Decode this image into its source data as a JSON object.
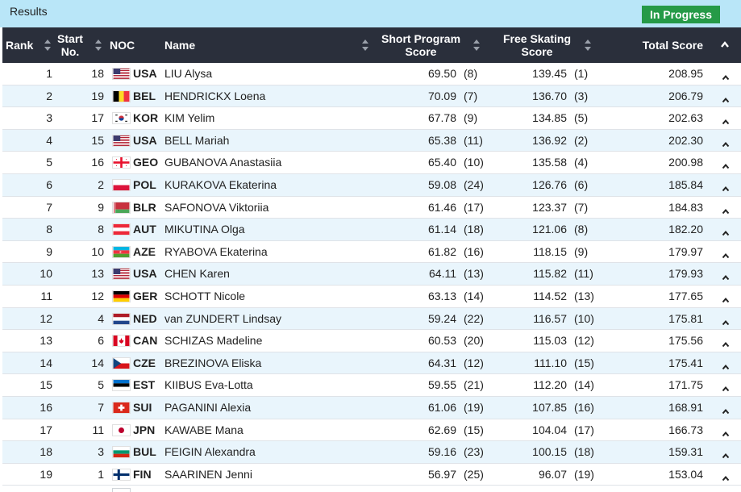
{
  "header": {
    "title": "Results",
    "status": "In Progress",
    "status_color": "#259a47"
  },
  "columns": {
    "rank": "Rank",
    "start_line1": "Start",
    "start_line2": "No.",
    "noc": "NOC",
    "name": "Name",
    "sp_line1": "Short Program",
    "sp_line2": "Score",
    "fs_line1": "Free Skating",
    "fs_line2": "Score",
    "total": "Total Score"
  },
  "rows": [
    {
      "rank": "1",
      "start": "18",
      "noc": "USA",
      "flag": "usa",
      "name": "LIU Alysa",
      "sp": "69.50",
      "sp_rank": "(8)",
      "fs": "139.45",
      "fs_rank": "(1)",
      "total": "208.95"
    },
    {
      "rank": "2",
      "start": "19",
      "noc": "BEL",
      "flag": "bel",
      "name": "HENDRICKX Loena",
      "sp": "70.09",
      "sp_rank": "(7)",
      "fs": "136.70",
      "fs_rank": "(3)",
      "total": "206.79"
    },
    {
      "rank": "3",
      "start": "17",
      "noc": "KOR",
      "flag": "kor",
      "name": "KIM Yelim",
      "sp": "67.78",
      "sp_rank": "(9)",
      "fs": "134.85",
      "fs_rank": "(5)",
      "total": "202.63"
    },
    {
      "rank": "4",
      "start": "15",
      "noc": "USA",
      "flag": "usa",
      "name": "BELL Mariah",
      "sp": "65.38",
      "sp_rank": "(11)",
      "fs": "136.92",
      "fs_rank": "(2)",
      "total": "202.30"
    },
    {
      "rank": "5",
      "start": "16",
      "noc": "GEO",
      "flag": "geo",
      "name": "GUBANOVA Anastasiia",
      "sp": "65.40",
      "sp_rank": "(10)",
      "fs": "135.58",
      "fs_rank": "(4)",
      "total": "200.98"
    },
    {
      "rank": "6",
      "start": "2",
      "noc": "POL",
      "flag": "pol",
      "name": "KURAKOVA Ekaterina",
      "sp": "59.08",
      "sp_rank": "(24)",
      "fs": "126.76",
      "fs_rank": "(6)",
      "total": "185.84"
    },
    {
      "rank": "7",
      "start": "9",
      "noc": "BLR",
      "flag": "blr",
      "name": "SAFONOVA Viktoriia",
      "sp": "61.46",
      "sp_rank": "(17)",
      "fs": "123.37",
      "fs_rank": "(7)",
      "total": "184.83"
    },
    {
      "rank": "8",
      "start": "8",
      "noc": "AUT",
      "flag": "aut",
      "name": "MIKUTINA Olga",
      "sp": "61.14",
      "sp_rank": "(18)",
      "fs": "121.06",
      "fs_rank": "(8)",
      "total": "182.20"
    },
    {
      "rank": "9",
      "start": "10",
      "noc": "AZE",
      "flag": "aze",
      "name": "RYABOVA Ekaterina",
      "sp": "61.82",
      "sp_rank": "(16)",
      "fs": "118.15",
      "fs_rank": "(9)",
      "total": "179.97"
    },
    {
      "rank": "10",
      "start": "13",
      "noc": "USA",
      "flag": "usa",
      "name": "CHEN Karen",
      "sp": "64.11",
      "sp_rank": "(13)",
      "fs": "115.82",
      "fs_rank": "(11)",
      "total": "179.93"
    },
    {
      "rank": "11",
      "start": "12",
      "noc": "GER",
      "flag": "ger",
      "name": "SCHOTT Nicole",
      "sp": "63.13",
      "sp_rank": "(14)",
      "fs": "114.52",
      "fs_rank": "(13)",
      "total": "177.65"
    },
    {
      "rank": "12",
      "start": "4",
      "noc": "NED",
      "flag": "ned",
      "name": "van ZUNDERT Lindsay",
      "sp": "59.24",
      "sp_rank": "(22)",
      "fs": "116.57",
      "fs_rank": "(10)",
      "total": "175.81"
    },
    {
      "rank": "13",
      "start": "6",
      "noc": "CAN",
      "flag": "can",
      "name": "SCHIZAS Madeline",
      "sp": "60.53",
      "sp_rank": "(20)",
      "fs": "115.03",
      "fs_rank": "(12)",
      "total": "175.56"
    },
    {
      "rank": "14",
      "start": "14",
      "noc": "CZE",
      "flag": "cze",
      "name": "BREZINOVA Eliska",
      "sp": "64.31",
      "sp_rank": "(12)",
      "fs": "111.10",
      "fs_rank": "(15)",
      "total": "175.41"
    },
    {
      "rank": "15",
      "start": "5",
      "noc": "EST",
      "flag": "est",
      "name": "KIIBUS Eva-Lotta",
      "sp": "59.55",
      "sp_rank": "(21)",
      "fs": "112.20",
      "fs_rank": "(14)",
      "total": "171.75"
    },
    {
      "rank": "16",
      "start": "7",
      "noc": "SUI",
      "flag": "sui",
      "name": "PAGANINI Alexia",
      "sp": "61.06",
      "sp_rank": "(19)",
      "fs": "107.85",
      "fs_rank": "(16)",
      "total": "168.91"
    },
    {
      "rank": "17",
      "start": "11",
      "noc": "JPN",
      "flag": "jpn",
      "name": "KAWABE Mana",
      "sp": "62.69",
      "sp_rank": "(15)",
      "fs": "104.04",
      "fs_rank": "(17)",
      "total": "166.73"
    },
    {
      "rank": "18",
      "start": "3",
      "noc": "BUL",
      "flag": "bul",
      "name": "FEIGIN Alexandra",
      "sp": "59.16",
      "sp_rank": "(23)",
      "fs": "100.15",
      "fs_rank": "(18)",
      "total": "159.31"
    },
    {
      "rank": "19",
      "start": "1",
      "noc": "FIN",
      "flag": "fin",
      "name": "SAARINEN Jenni",
      "sp": "56.97",
      "sp_rank": "(25)",
      "fs": "96.07",
      "fs_rank": "(19)",
      "total": "153.04"
    }
  ],
  "icons": {
    "sort": "sort-arrows-icon",
    "collapse": "chevron-up-icon"
  }
}
